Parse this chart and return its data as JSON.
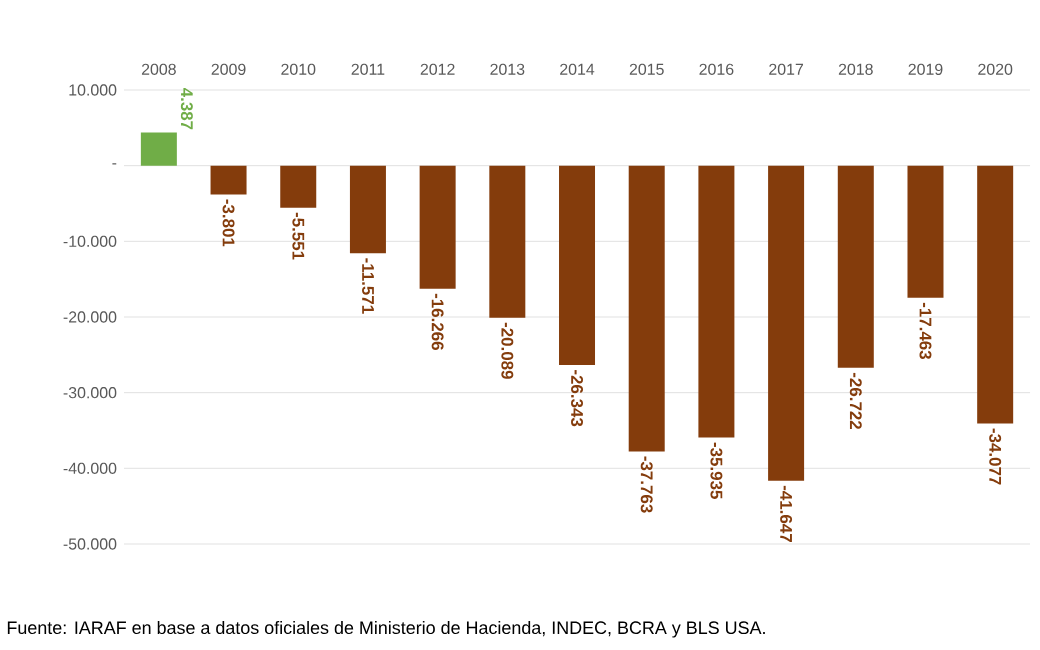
{
  "chart_data": {
    "type": "bar",
    "categories": [
      "2008",
      "2009",
      "2010",
      "2011",
      "2012",
      "2013",
      "2014",
      "2015",
      "2016",
      "2017",
      "2018",
      "2019",
      "2020"
    ],
    "values": [
      4387,
      -3801,
      -5551,
      -11571,
      -16266,
      -20089,
      -26343,
      -37763,
      -35935,
      -41647,
      -26722,
      -17463,
      -34077
    ],
    "value_labels": [
      "4.387",
      "-3.801",
      "-5.551",
      "-11.571",
      "-16.266",
      "-20.089",
      "-26.343",
      "-37.763",
      "-35.935",
      "-41.647",
      "-26.722",
      "-17.463",
      "-34.077"
    ],
    "colors": [
      "#70ad47",
      "#843c0c",
      "#843c0c",
      "#843c0c",
      "#843c0c",
      "#843c0c",
      "#843c0c",
      "#843c0c",
      "#843c0c",
      "#843c0c",
      "#843c0c",
      "#843c0c",
      "#843c0c"
    ],
    "ylim": [
      -50000,
      10000
    ],
    "yticks": [
      {
        "value": 10000,
        "label": "10.000"
      },
      {
        "value": 0,
        "label": "-"
      },
      {
        "value": -10000,
        "label": "-10.000"
      },
      {
        "value": -20000,
        "label": "-20.000"
      },
      {
        "value": -30000,
        "label": "-30.000"
      },
      {
        "value": -40000,
        "label": "-40.000"
      },
      {
        "value": -50000,
        "label": "-50.000"
      }
    ],
    "grid": "y",
    "annotations": [
      "Fuente: IARAF en base a datos oficiales de Ministerio de Hacienda, INDEC, BCRA y BLS USA."
    ]
  }
}
